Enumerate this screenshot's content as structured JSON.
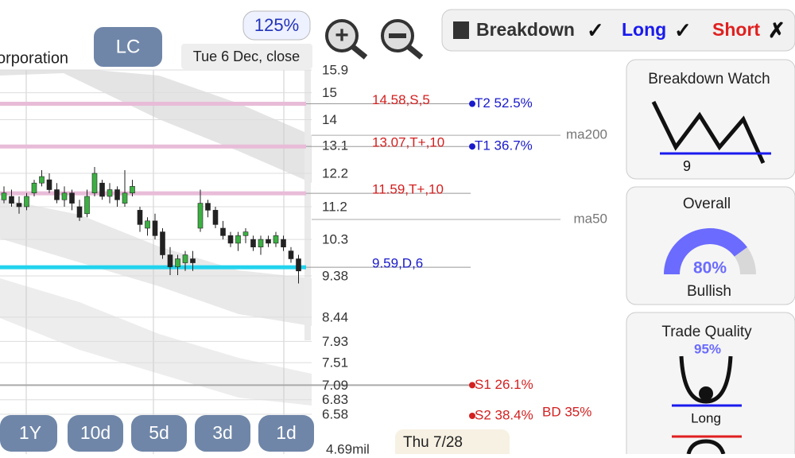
{
  "header": {
    "company": "orporation",
    "symbol": "LC",
    "date": "Tue 6 Dec, close",
    "zoom": "125%"
  },
  "toggles": [
    {
      "label": "Breakdown",
      "mark": "✓"
    },
    {
      "label": "Long",
      "mark": "✓"
    },
    {
      "label": "Short",
      "mark": "✗"
    }
  ],
  "chart_data": {
    "type": "candlestick",
    "log_scale": true,
    "ylim": [
      6.58,
      15.9
    ],
    "yticks": [
      15.9,
      15,
      14,
      13.1,
      12.2,
      11.2,
      10.3,
      9.38,
      8.44,
      7.93,
      7.51,
      7.09,
      6.83,
      6.58
    ],
    "open": [
      11.4,
      11.5,
      11.3,
      11.2,
      11.6,
      11.9,
      12.0,
      11.7,
      11.4,
      11.6,
      11.2,
      11.0,
      11.6,
      11.9,
      11.5,
      11.7,
      11.3,
      11.6,
      11.1,
      10.6,
      10.8,
      10.5,
      9.9,
      9.6,
      9.7,
      9.8,
      10.6,
      11.3,
      11.1,
      10.6,
      10.4,
      10.2,
      10.4,
      10.3,
      10.1,
      10.3,
      10.2,
      10.3,
      10.0,
      9.8
    ],
    "high": [
      11.8,
      11.7,
      11.5,
      11.6,
      12.0,
      12.3,
      12.2,
      11.9,
      11.8,
      11.7,
      11.4,
      11.7,
      12.4,
      12.0,
      11.9,
      11.8,
      12.3,
      12.0,
      11.2,
      10.9,
      11.0,
      10.6,
      10.1,
      9.9,
      10.0,
      10.0,
      11.7,
      11.4,
      11.2,
      10.8,
      10.5,
      10.5,
      10.6,
      10.4,
      10.4,
      10.4,
      10.5,
      10.4,
      10.1,
      9.9
    ],
    "low": [
      11.3,
      11.2,
      11.0,
      11.1,
      11.5,
      11.8,
      11.6,
      11.3,
      11.2,
      11.1,
      10.8,
      10.9,
      11.5,
      11.4,
      11.3,
      11.2,
      11.2,
      11.5,
      10.5,
      10.4,
      10.3,
      9.8,
      9.4,
      9.4,
      9.5,
      9.5,
      10.5,
      10.9,
      10.6,
      10.3,
      10.1,
      10.0,
      10.2,
      10.0,
      9.9,
      10.1,
      10.1,
      10.0,
      9.7,
      9.2
    ],
    "close": [
      11.6,
      11.3,
      11.2,
      11.5,
      11.9,
      12.1,
      11.7,
      11.4,
      11.6,
      11.3,
      10.9,
      11.5,
      12.2,
      11.5,
      11.7,
      11.4,
      11.6,
      11.8,
      10.7,
      10.8,
      10.4,
      9.9,
      9.6,
      9.8,
      9.9,
      9.7,
      11.3,
      11.1,
      10.7,
      10.4,
      10.2,
      10.4,
      10.5,
      10.1,
      10.3,
      10.2,
      10.4,
      10.1,
      9.8,
      9.5
    ],
    "levels": [
      {
        "value": 14.58,
        "label": "14.58,S,5",
        "color": "#e8bcd8"
      },
      {
        "value": 13.07,
        "label": "13.07,T+,10",
        "color": "#e8bcd8"
      },
      {
        "value": 11.59,
        "label": "11.59,T+,10",
        "color": "#e8bcd8"
      },
      {
        "value": 9.59,
        "label": "9.59,D,6",
        "color": "#22d3ee"
      }
    ],
    "targets": [
      {
        "value": 14.58,
        "label": "T2 52.5%"
      },
      {
        "value": 13.07,
        "label": "T1 36.7%"
      },
      {
        "value": 7.09,
        "label": "S1 26.1%"
      },
      {
        "value": 6.58,
        "label": "S2 38.4%"
      }
    ],
    "mas": [
      {
        "value": 13.45,
        "label": "ma200"
      },
      {
        "value": 10.84,
        "label": "ma50"
      }
    ],
    "breakdown": "BD 35%",
    "volume": "4.69mil",
    "hover_date": "Thu 7/28"
  },
  "periods": [
    "1Y",
    "10d",
    "5d",
    "3d",
    "1d"
  ],
  "cards": {
    "breakdown": {
      "title": "Breakdown Watch",
      "count": "9"
    },
    "overall": {
      "title": "Overall",
      "value": 80,
      "value_label": "80%",
      "rating": "Bullish"
    },
    "quality": {
      "title": "Trade Quality",
      "value": 95,
      "value_label": "95%",
      "side": "Long"
    }
  }
}
